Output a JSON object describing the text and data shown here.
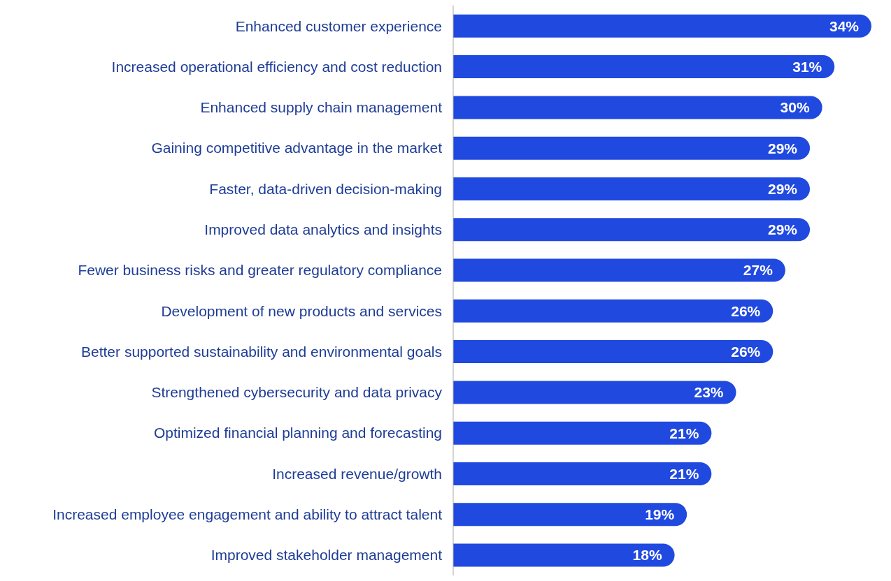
{
  "chart_data": {
    "type": "bar",
    "orientation": "horizontal",
    "color": "#2049e0",
    "categories": [
      "Enhanced customer experience",
      "Increased operational efficiency and cost reduction",
      "Enhanced supply chain management",
      "Gaining competitive advantage in the market",
      "Faster, data-driven decision-making",
      "Improved data analytics and insights",
      "Fewer business risks and greater regulatory compliance",
      "Development of new products and services",
      "Better supported sustainability and environmental goals",
      "Strengthened cybersecurity and data privacy",
      "Optimized financial planning and forecasting",
      "Increased revenue/growth",
      "Increased employee engagement and ability to attract talent",
      "Improved stakeholder management"
    ],
    "values": [
      34,
      31,
      30,
      29,
      29,
      29,
      27,
      26,
      26,
      23,
      21,
      21,
      19,
      18
    ],
    "value_labels": [
      "34%",
      "31%",
      "30%",
      "29%",
      "29%",
      "29%",
      "27%",
      "26%",
      "26%",
      "23%",
      "21%",
      "21%",
      "19%",
      "18%"
    ]
  }
}
